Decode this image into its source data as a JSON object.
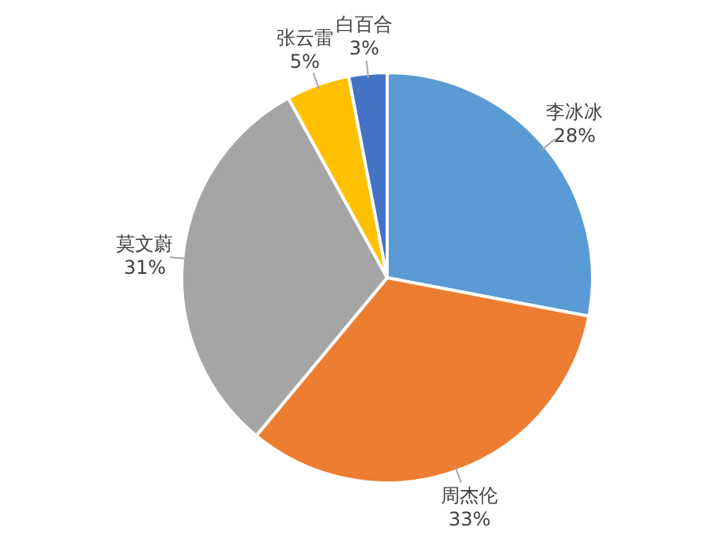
{
  "chart_data": {
    "type": "pie",
    "categories": [
      "李冰冰",
      "周杰伦",
      "莫文蔚",
      "张云雷",
      "白百合"
    ],
    "values": [
      28,
      33,
      31,
      5,
      3
    ],
    "colors": [
      "#5b9bd5",
      "#ed7d31",
      "#a5a5a5",
      "#ffc000",
      "#4472c4"
    ],
    "value_labels": [
      "28%",
      "33%",
      "31%",
      "5%",
      "3%"
    ]
  }
}
